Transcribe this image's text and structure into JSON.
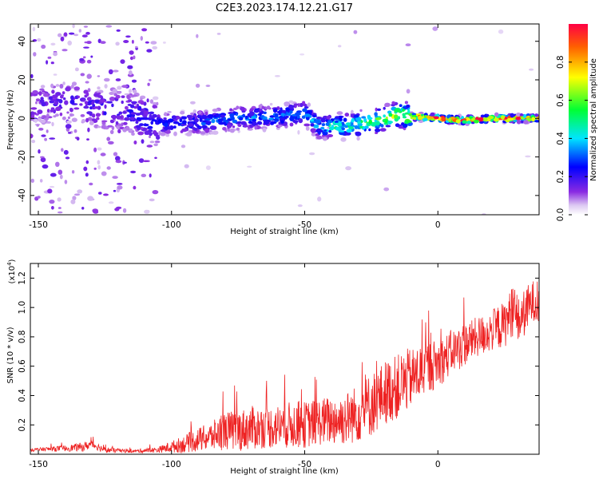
{
  "figure": {
    "title": "C2E3.2023.174.12.21.G17"
  },
  "colors": {
    "snr_line": "#ee2222",
    "colormap": [
      "#ffffff",
      "#dcc8f2",
      "#8a2be2",
      "#0000ff",
      "#00e5ff",
      "#00ff33",
      "#ffff00",
      "#ff0000"
    ]
  },
  "chart_data": [
    {
      "type": "heatmap",
      "title": "",
      "xlabel": "Height of straight line (km)",
      "ylabel": "Frequency (Hz)",
      "xlim": [
        -153,
        38
      ],
      "ylim": [
        -50,
        49
      ],
      "x_ticks": [
        -150,
        -100,
        -50,
        0
      ],
      "x_tick_labels": [
        "-150",
        "-100",
        "-50",
        "0"
      ],
      "y_ticks": [
        -40,
        -20,
        0,
        20,
        40
      ],
      "y_tick_labels": [
        "-40",
        "-20",
        "0",
        "20",
        "40"
      ],
      "colorbar": {
        "label": "Normalized spectral amplitude",
        "range": [
          0,
          1
        ],
        "ticks": [
          0.0,
          0.2,
          0.4,
          0.6,
          0.8
        ],
        "tick_labels": [
          "0.0",
          "0.2",
          "0.4",
          "0.6",
          "0.8"
        ]
      },
      "ridge_frequency_hz": [
        {
          "x": -153,
          "y": 7
        },
        {
          "x": -140,
          "y": 9
        },
        {
          "x": -130,
          "y": 6
        },
        {
          "x": -115,
          "y": 3
        },
        {
          "x": -105,
          "y": -3
        },
        {
          "x": -90,
          "y": -2
        },
        {
          "x": -75,
          "y": 0
        },
        {
          "x": -60,
          "y": 1
        },
        {
          "x": -50,
          "y": 3
        },
        {
          "x": -45,
          "y": -4
        },
        {
          "x": -35,
          "y": -4
        },
        {
          "x": -25,
          "y": -2
        },
        {
          "x": -15,
          "y": 2
        },
        {
          "x": -10,
          "y": 1
        },
        {
          "x": 0,
          "y": 0
        },
        {
          "x": 10,
          "y": -1
        },
        {
          "x": 20,
          "y": 0
        },
        {
          "x": 38,
          "y": 0
        }
      ],
      "ridge_amplitude": [
        {
          "x": -153,
          "a": 0.15
        },
        {
          "x": -105,
          "a": 0.22
        },
        {
          "x": -80,
          "a": 0.3
        },
        {
          "x": -50,
          "a": 0.32
        },
        {
          "x": -40,
          "a": 0.42
        },
        {
          "x": -25,
          "a": 0.52
        },
        {
          "x": -15,
          "a": 0.62
        },
        {
          "x": -10,
          "a": 0.78
        },
        {
          "x": 0,
          "a": 0.95
        },
        {
          "x": 38,
          "a": 0.95
        }
      ]
    },
    {
      "type": "line",
      "title": "",
      "xlabel": "Height of straight line (km)",
      "ylabel": "SNR (10 * v/v)",
      "y_multiplier_label": "(x10",
      "y_multiplier_exponent": "4",
      "xlim": [
        -153,
        38
      ],
      "ylim": [
        0,
        1.3
      ],
      "x_ticks": [
        -150,
        -100,
        -50,
        0
      ],
      "x_tick_labels": [
        "-150",
        "-100",
        "-50",
        "0"
      ],
      "y_ticks": [
        0.2,
        0.4,
        0.6,
        0.8,
        1.0,
        1.2
      ],
      "y_tick_labels": [
        "0.2",
        "0.4",
        "0.6",
        "0.8",
        "1.0",
        "1.2"
      ],
      "series": [
        {
          "x": [
            -153,
            -140,
            -133,
            -130,
            -125,
            -115,
            -105,
            -100,
            -95,
            -90,
            -85,
            -80,
            -75,
            -70,
            -65,
            -60,
            -55,
            -50,
            -45,
            -40,
            -35,
            -30,
            -25,
            -22,
            -20,
            -15,
            -12,
            -10,
            -7,
            -5,
            -3,
            0,
            3,
            5,
            8,
            10,
            13,
            15,
            18,
            20,
            22,
            25,
            27,
            28,
            30,
            32,
            34,
            36,
            38
          ],
          "y": [
            0.03,
            0.04,
            0.05,
            0.07,
            0.03,
            0.02,
            0.03,
            0.05,
            0.07,
            0.1,
            0.12,
            0.16,
            0.16,
            0.18,
            0.18,
            0.19,
            0.2,
            0.2,
            0.22,
            0.23,
            0.24,
            0.28,
            0.34,
            0.38,
            0.42,
            0.46,
            0.5,
            0.52,
            0.55,
            0.58,
            0.6,
            0.62,
            0.66,
            0.7,
            0.72,
            0.75,
            0.78,
            0.8,
            0.82,
            0.84,
            0.86,
            0.88,
            0.95,
            1.0,
            0.9,
            0.95,
            1.0,
            1.05,
            1.0
          ],
          "noise": [
            0.01,
            0.02,
            0.03,
            0.03,
            0.02,
            0.01,
            0.02,
            0.04,
            0.06,
            0.08,
            0.1,
            0.13,
            0.14,
            0.15,
            0.14,
            0.15,
            0.16,
            0.16,
            0.16,
            0.17,
            0.18,
            0.2,
            0.22,
            0.22,
            0.22,
            0.22,
            0.22,
            0.2,
            0.2,
            0.18,
            0.18,
            0.16,
            0.16,
            0.15,
            0.15,
            0.15,
            0.14,
            0.14,
            0.14,
            0.14,
            0.15,
            0.16,
            0.16,
            0.2,
            0.16,
            0.16,
            0.16,
            0.14,
            0.12
          ]
        }
      ]
    }
  ]
}
